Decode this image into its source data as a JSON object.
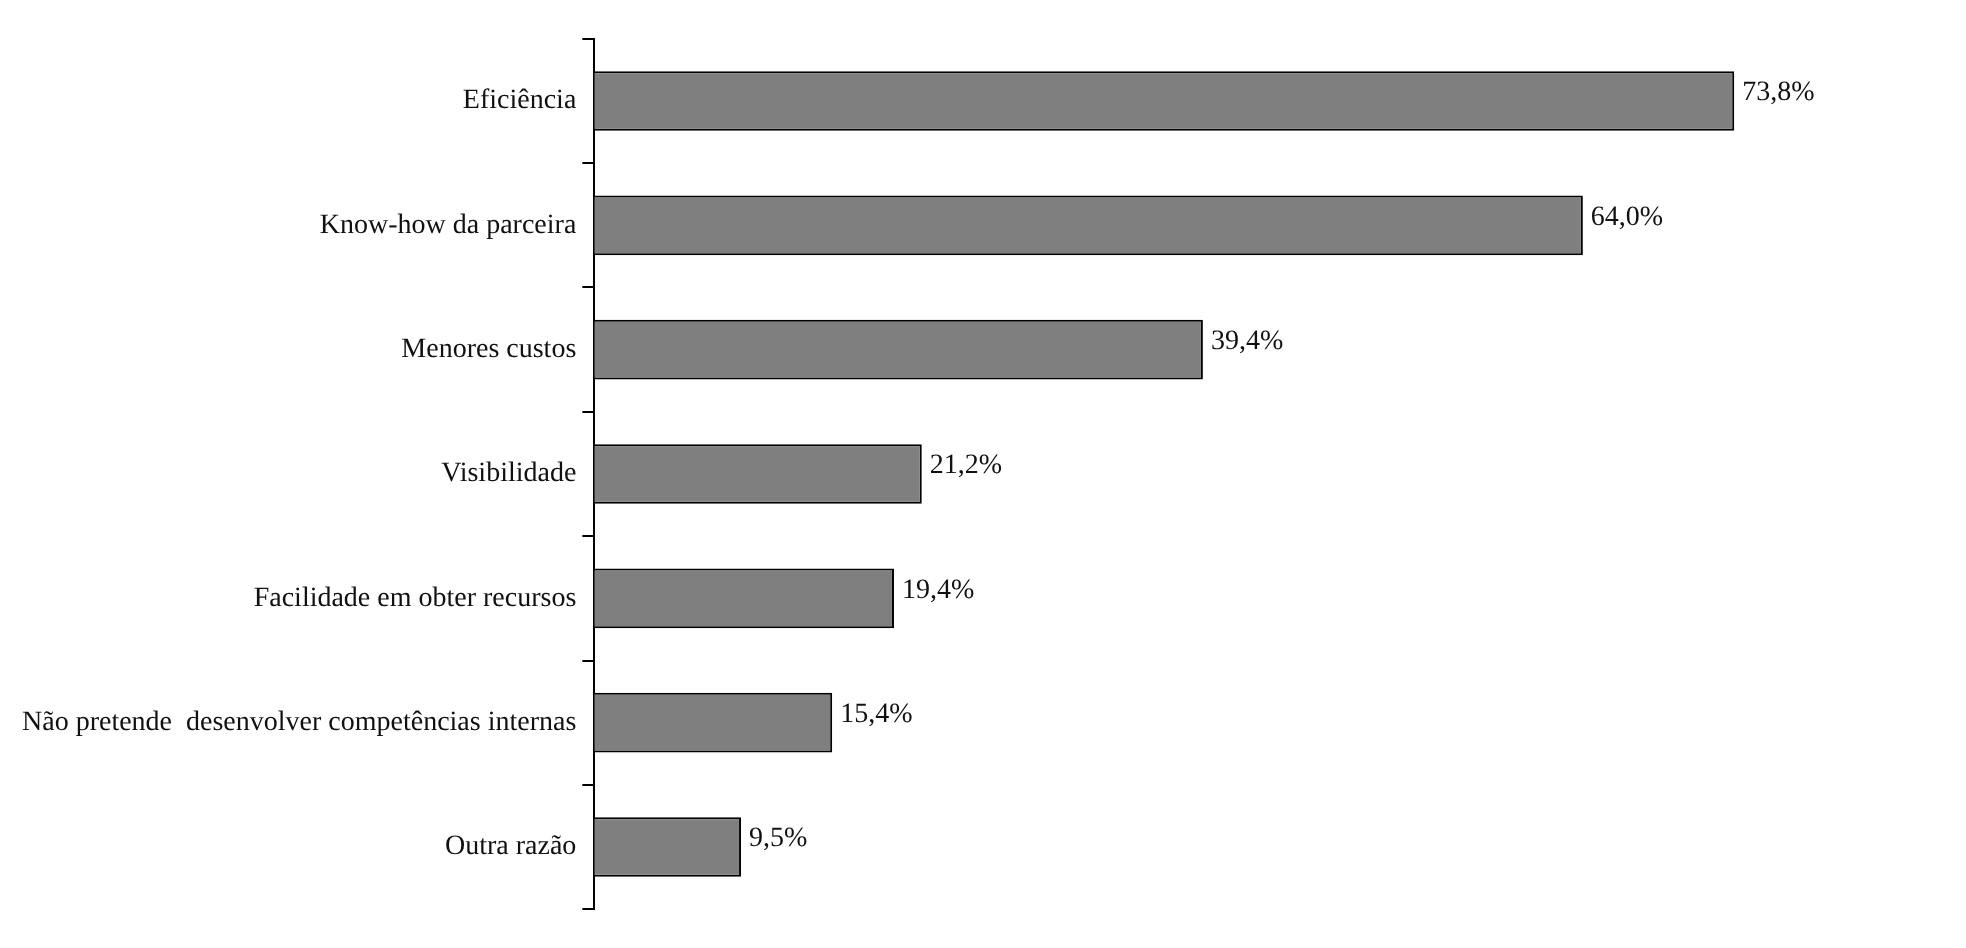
{
  "chart_data": {
    "type": "bar",
    "orientation": "horizontal",
    "categories": [
      "Eficiência",
      "Know-how da parceira",
      "Menores custos",
      "Visibilidade",
      "Facilidade em obter recursos",
      "Não pretende  desenvolver competências internas",
      "Outra razão"
    ],
    "values": [
      73.8,
      64.0,
      39.4,
      21.2,
      19.4,
      15.4,
      9.5
    ],
    "value_labels": [
      "73,8%",
      "64,0%",
      "39,4%",
      "21,2%",
      "19,4%",
      "15,4%",
      "9,5%"
    ],
    "color": "#7f7f7f",
    "legend": false
  }
}
